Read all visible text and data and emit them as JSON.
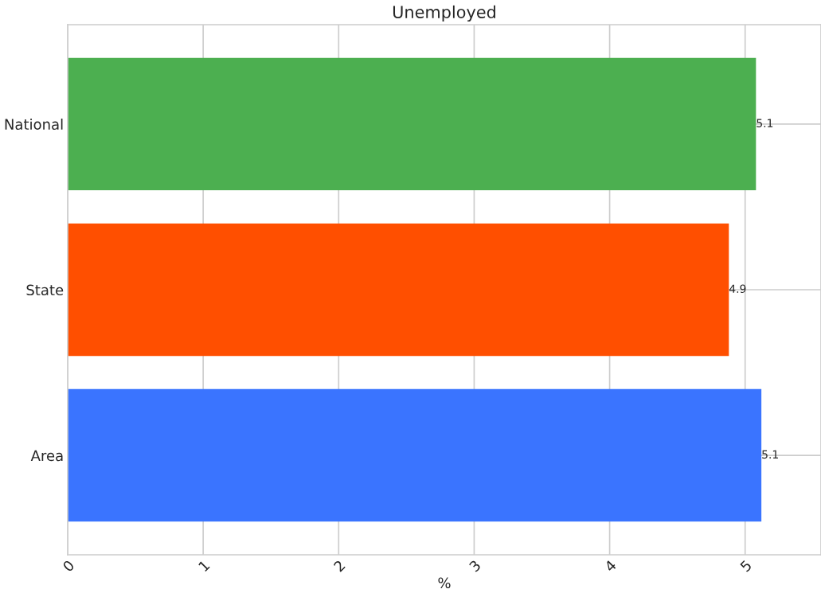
{
  "chart_data": {
    "type": "bar",
    "orientation": "horizontal",
    "title": "Unemployed",
    "xlabel": "%",
    "categories": [
      "National",
      "State",
      "Area"
    ],
    "values": [
      5.08,
      4.88,
      5.12
    ],
    "value_labels": [
      "5.1",
      "4.9",
      "5.1"
    ],
    "colors": [
      "#4caf50",
      "#ff4f00",
      "#3a74ff"
    ],
    "xlim": [
      0,
      5.56
    ],
    "xticks": [
      0,
      1,
      2,
      3,
      4,
      5
    ],
    "grid": true
  }
}
